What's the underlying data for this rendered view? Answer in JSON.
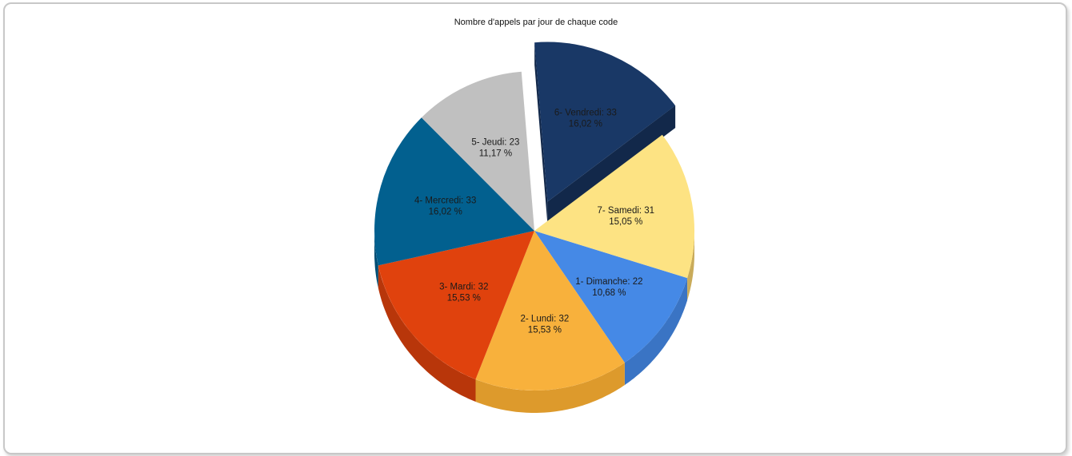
{
  "chart_data": {
    "type": "pie",
    "title": "Nombre d'appels par jour de chaque code",
    "exploded": "6- Vendredi",
    "slices": [
      {
        "label": "1- Dimanche",
        "value": 22,
        "percent": "10,68 %",
        "color": "#4589e6",
        "side": "#3a74c4"
      },
      {
        "label": "2- Lundi",
        "value": 32,
        "percent": "15,53 %",
        "color": "#f8b13c",
        "side": "#dd9a2c"
      },
      {
        "label": "3- Mardi",
        "value": 32,
        "percent": "15,53 %",
        "color": "#e0420d",
        "side": "#b8360a"
      },
      {
        "label": "4- Mercredi",
        "value": 33,
        "percent": "16,02 %",
        "color": "#02608f",
        "side": "#014d73"
      },
      {
        "label": "5- Jeudi",
        "value": 23,
        "percent": "11,17 %",
        "color": "#c0c0c0",
        "side": "#9c9c9c"
      },
      {
        "label": "6- Vendredi",
        "value": 33,
        "percent": "16,02 %",
        "color": "#193866",
        "side": "#12284a"
      },
      {
        "label": "7- Samedi",
        "value": 31,
        "percent": "15,05 %",
        "color": "#fde383",
        "side": "#c9ab5a"
      }
    ]
  }
}
